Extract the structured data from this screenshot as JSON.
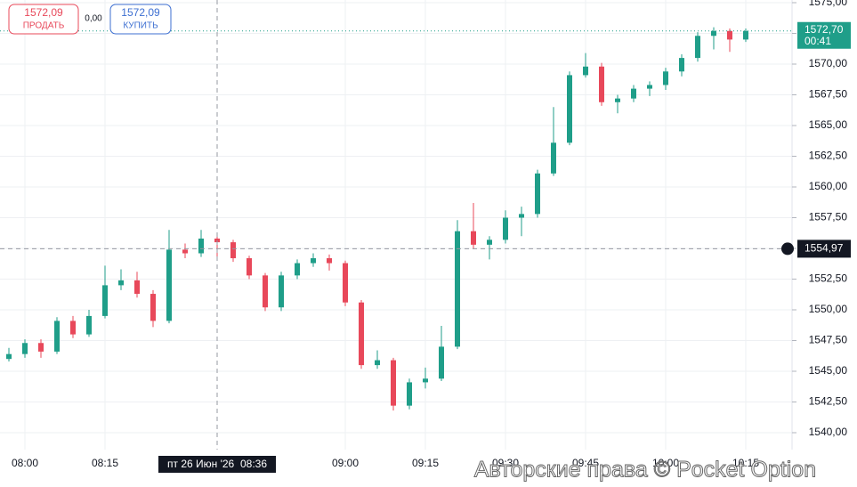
{
  "chart_data": {
    "type": "candlestick",
    "categories": [
      null,
      "08:00",
      null,
      null,
      null,
      null,
      "08:15",
      null,
      null,
      null,
      null,
      null,
      null,
      null,
      null,
      null,
      null,
      null,
      null,
      null,
      null,
      "09:00",
      null,
      null,
      null,
      null,
      "09:15",
      null,
      null,
      null,
      null,
      "09:30",
      null,
      null,
      null,
      null,
      "09:45",
      null,
      null,
      null,
      null,
      "10:00",
      null,
      null,
      null,
      null,
      "10:15"
    ],
    "open": [
      1546.0,
      1546.4,
      1547.3,
      1546.6,
      1549.1,
      1548.0,
      1549.5,
      1552.0,
      1552.4,
      1551.3,
      1549.1,
      1554.9,
      1554.6,
      1555.8,
      1555.5,
      1554.2,
      1552.8,
      1550.2,
      1552.8,
      1553.8,
      1554.2,
      1553.8,
      1550.6,
      1545.5,
      1545.9,
      1542.2,
      1544.1,
      1544.4,
      1547.0,
      1556.4,
      1555.3,
      1555.7,
      1557.5,
      1557.8,
      1561.1,
      1563.6,
      1569.1,
      1569.8,
      1566.9,
      1567.2,
      1568.0,
      1568.3,
      1569.4,
      1570.5,
      1572.3,
      1572.7,
      1572.0
    ],
    "high": [
      1546.9,
      1547.6,
      1547.6,
      1549.4,
      1549.5,
      1550.0,
      1553.6,
      1553.3,
      1553.1,
      1551.6,
      1556.5,
      1555.4,
      1556.5,
      1556.2,
      1555.7,
      1554.4,
      1553.0,
      1553.1,
      1554.1,
      1554.6,
      1554.5,
      1554.0,
      1550.8,
      1546.7,
      1546.1,
      1544.4,
      1545.3,
      1548.7,
      1557.3,
      1558.7,
      1556.0,
      1558.1,
      1558.4,
      1561.4,
      1566.5,
      1569.4,
      1570.9,
      1570.1,
      1567.5,
      1568.3,
      1568.6,
      1569.7,
      1570.8,
      1572.6,
      1573.0,
      1572.9,
      1572.9
    ],
    "low": [
      1545.8,
      1546.1,
      1546.1,
      1546.4,
      1547.7,
      1547.8,
      1549.3,
      1551.6,
      1551.0,
      1548.6,
      1548.9,
      1554.2,
      1554.3,
      1554.0,
      1553.9,
      1552.5,
      1549.9,
      1549.9,
      1552.5,
      1553.5,
      1553.2,
      1550.3,
      1545.2,
      1545.2,
      1541.8,
      1541.9,
      1543.6,
      1544.2,
      1546.8,
      1555.0,
      1554.1,
      1555.4,
      1556.0,
      1557.5,
      1560.9,
      1563.4,
      1568.9,
      1566.6,
      1566.0,
      1566.9,
      1567.4,
      1567.9,
      1569.0,
      1570.2,
      1571.2,
      1571.0,
      1571.8
    ],
    "close": [
      1546.4,
      1547.3,
      1546.6,
      1549.1,
      1548.0,
      1549.5,
      1552.0,
      1552.4,
      1551.3,
      1549.1,
      1554.9,
      1554.6,
      1555.8,
      1555.5,
      1554.2,
      1552.8,
      1550.2,
      1552.8,
      1553.8,
      1554.2,
      1553.8,
      1550.6,
      1545.5,
      1545.9,
      1542.2,
      1544.1,
      1544.4,
      1547.0,
      1556.4,
      1555.3,
      1555.7,
      1557.5,
      1557.8,
      1561.1,
      1563.6,
      1569.1,
      1569.8,
      1566.9,
      1567.2,
      1568.0,
      1568.3,
      1569.4,
      1570.5,
      1572.3,
      1572.7,
      1572.0,
      1572.7
    ],
    "up_color": "#1f9e89",
    "down_color": "#e8485a",
    "ylim": [
      1540,
      1575
    ],
    "yticks": [
      {
        "value": 1540,
        "label": "1540,00"
      },
      {
        "value": 1542.5,
        "label": "1542,50"
      },
      {
        "value": 1545,
        "label": "1545,00"
      },
      {
        "value": 1547.5,
        "label": "1547,50"
      },
      {
        "value": 1550,
        "label": "1550,00"
      },
      {
        "value": 1552.5,
        "label": "1552,50"
      },
      {
        "value": 1555,
        "label": "1555,00"
      },
      {
        "value": 1557.5,
        "label": "1557,50"
      },
      {
        "value": 1560,
        "label": "1560,00"
      },
      {
        "value": 1562.5,
        "label": "1562,50"
      },
      {
        "value": 1565,
        "label": "1565,00"
      },
      {
        "value": 1567.5,
        "label": "1567,50"
      },
      {
        "value": 1570,
        "label": "1570,00"
      },
      {
        "value": 1572.5,
        "label": "1572,50"
      },
      {
        "value": 1575,
        "label": "1575,00"
      }
    ],
    "grid": true,
    "current_price": {
      "value": 1572.7,
      "label": "1572,70",
      "countdown": "00:41"
    },
    "crosshair": {
      "index": 13,
      "date": "пт 26 Июн '26",
      "time": "08:36",
      "price": {
        "value": 1554.97,
        "label": "1554,97"
      }
    },
    "sell": {
      "price": "1572,09",
      "label": "ПРОДАТЬ"
    },
    "spread": "0,00",
    "buy": {
      "price": "1572,09",
      "label": "КУПИТЬ"
    },
    "watermark": "Авторские права © Pocket Option"
  }
}
